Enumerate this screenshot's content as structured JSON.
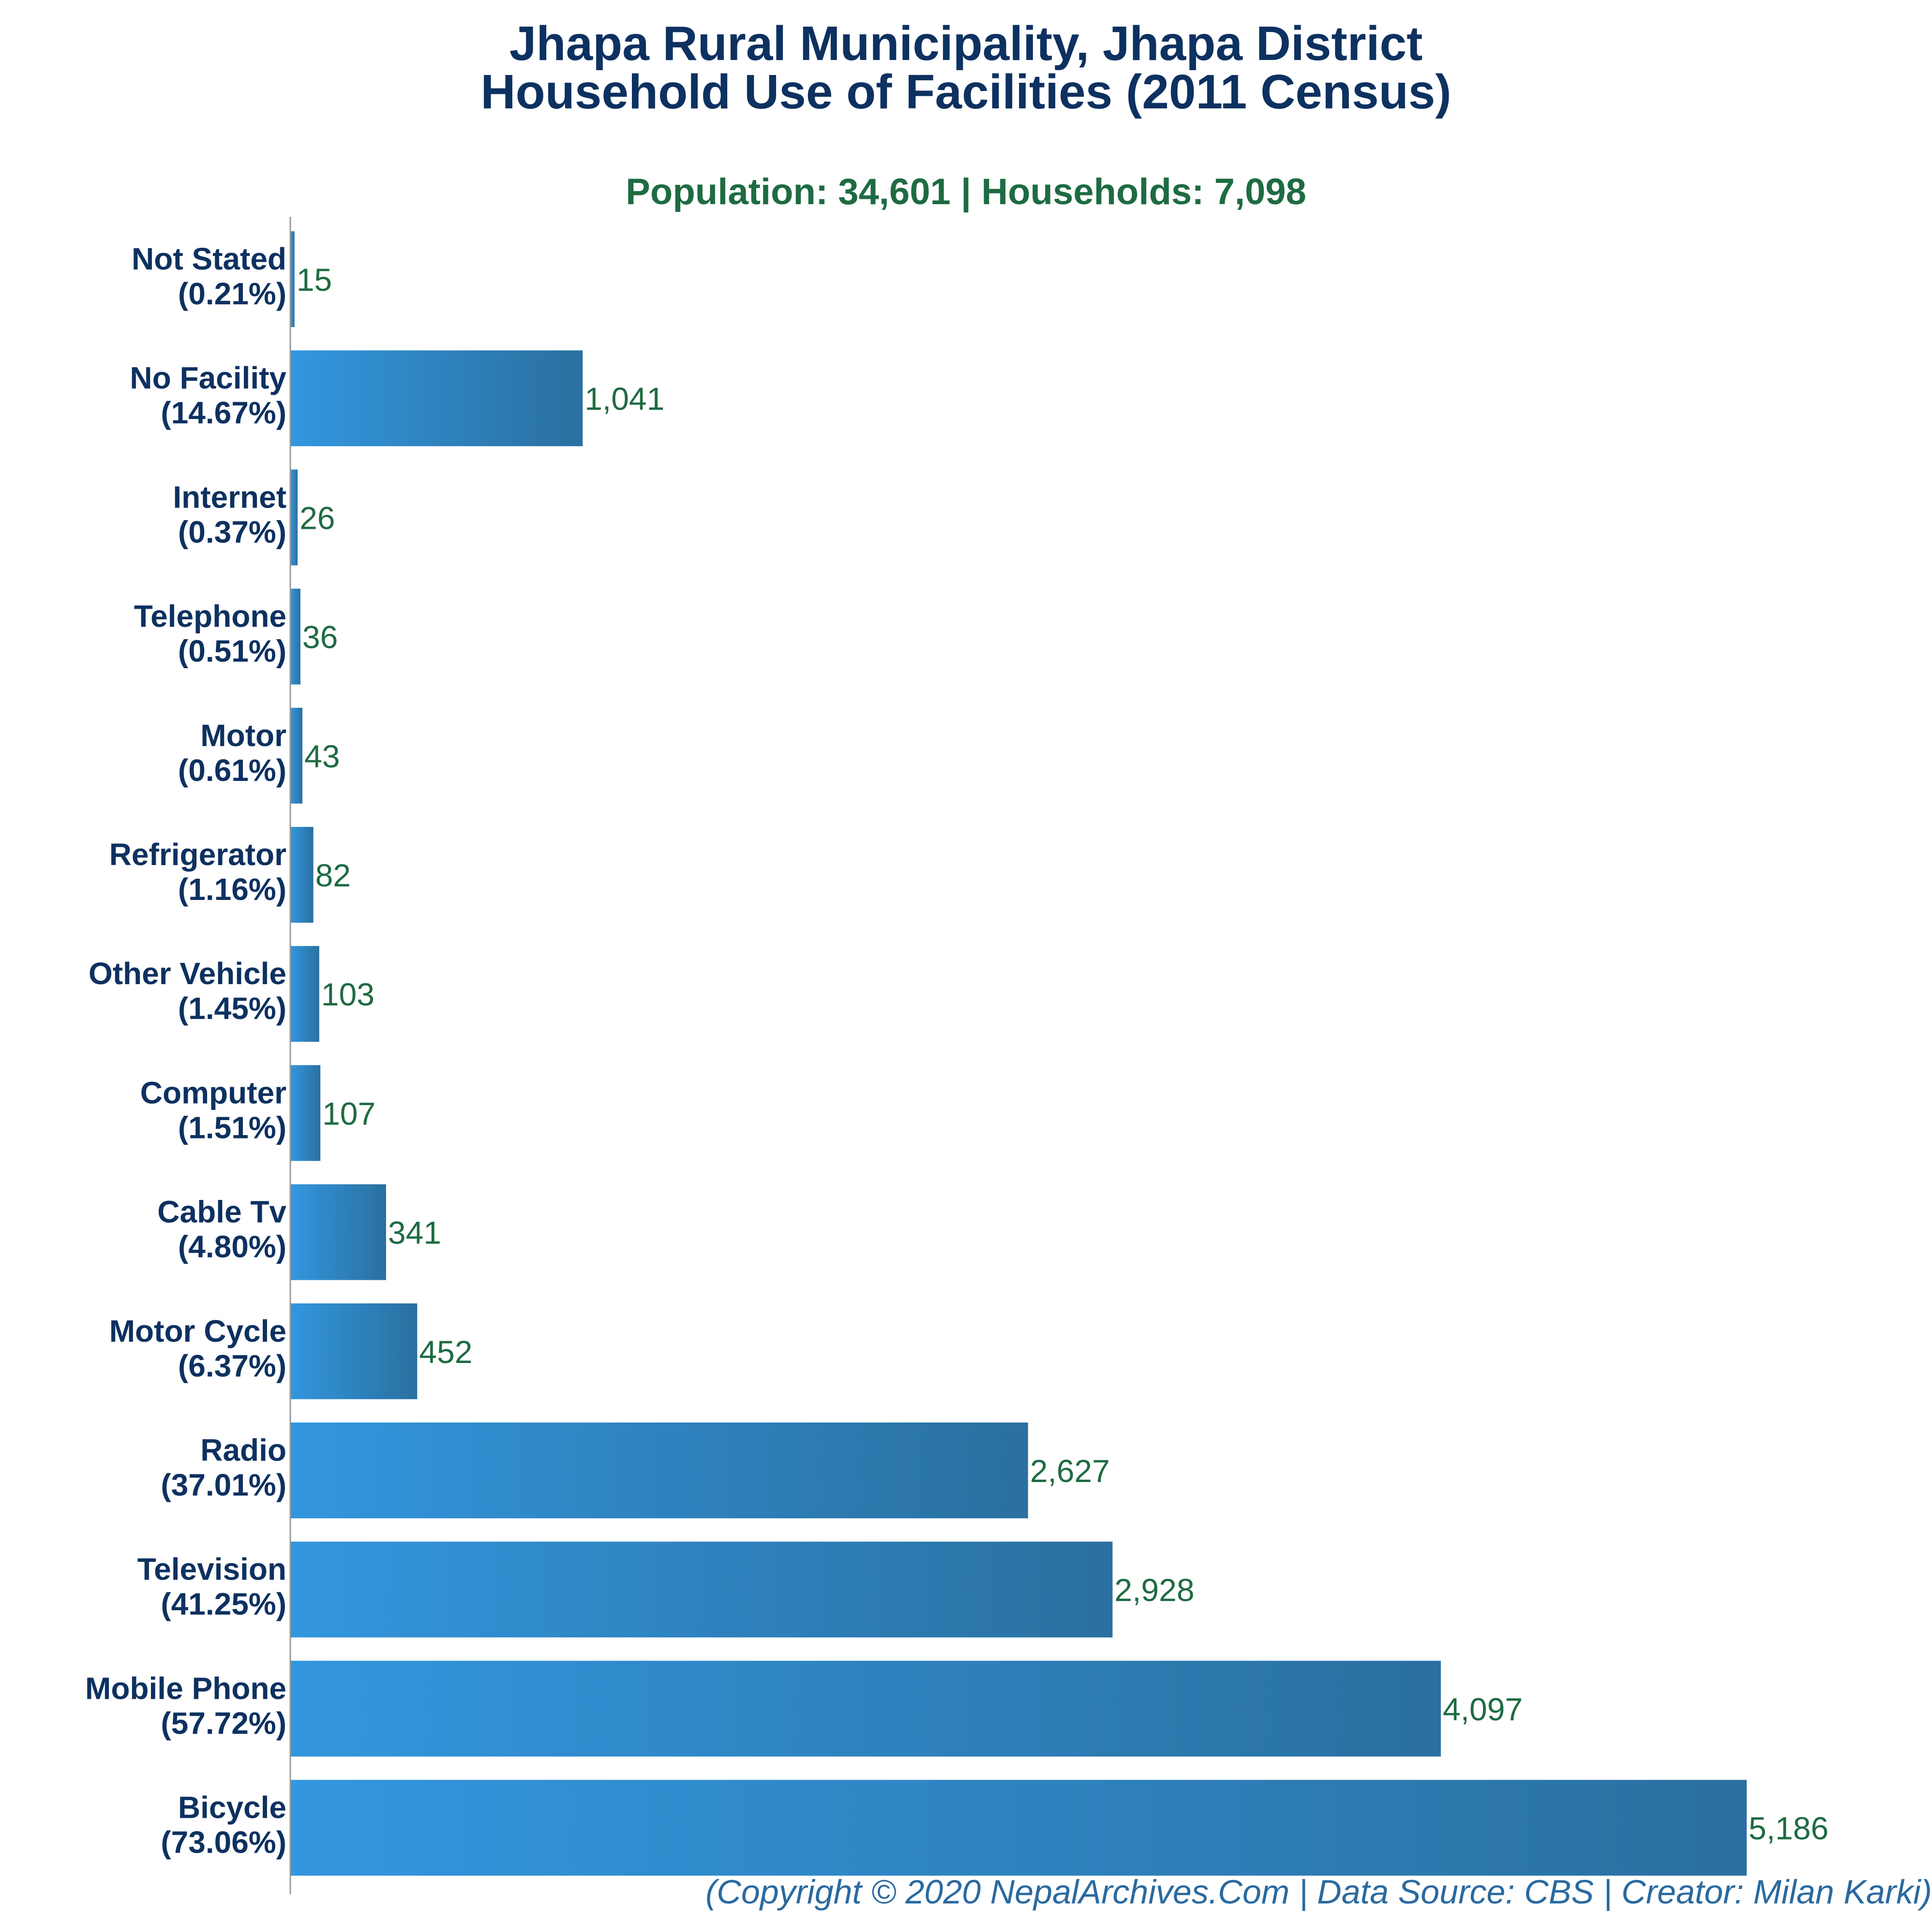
{
  "title_line1": "Jhapa Rural Municipality, Jhapa District",
  "title_line2": "Household Use of Facilities (2011 Census)",
  "subtitle": "Population: 34,601 | Households: 7,098",
  "footer": "(Copyright © 2020 NepalArchives.Com | Data Source: CBS | Creator: Milan Karki)",
  "colors": {
    "bar_start": "#3396de",
    "bar_end": "#2a70a0",
    "label": "#0d3160",
    "value": "#1e6b42",
    "axis": "#999999"
  },
  "chart_data": {
    "type": "bar",
    "orientation": "horizontal",
    "categories": [
      "Not Stated",
      "No Facility",
      "Internet",
      "Telephone",
      "Motor",
      "Refrigerator",
      "Other Vehicle",
      "Computer",
      "Cable Tv",
      "Motor Cycle",
      "Radio",
      "Television",
      "Mobile Phone",
      "Bicycle"
    ],
    "percent_labels": [
      "(0.21%)",
      "(14.67%)",
      "(0.37%)",
      "(0.51%)",
      "(0.61%)",
      "(1.16%)",
      "(1.45%)",
      "(1.51%)",
      "(4.80%)",
      "(6.37%)",
      "(37.01%)",
      "(41.25%)",
      "(57.72%)",
      "(73.06%)"
    ],
    "values": [
      15,
      1041,
      26,
      36,
      43,
      82,
      103,
      107,
      341,
      452,
      2627,
      2928,
      4097,
      5186
    ],
    "value_labels": [
      "15",
      "1,041",
      "26",
      "36",
      "43",
      "82",
      "103",
      "107",
      "341",
      "452",
      "2,627",
      "2,928",
      "4,097",
      "5,186"
    ],
    "title": "Jhapa Rural Municipality, Jhapa District Household Use of Facilities (2011 Census)",
    "xlabel": "",
    "ylabel": "",
    "grid": false
  }
}
